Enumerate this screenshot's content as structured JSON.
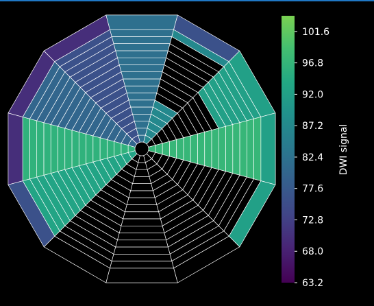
{
  "chart_data": {
    "type": "heatmap",
    "subtype": "polar-segment-map",
    "sectors": 12,
    "rings": 16,
    "min_signal": 63.2,
    "max_signal": 104.0,
    "sector_signal": [
      82,
      87,
      92,
      97,
      0,
      0,
      0,
      0,
      93,
      96,
      80,
      76
    ],
    "lesion_ranges": [
      {
        "sector": 1,
        "ring_from": 6,
        "ring_to": 14
      },
      {
        "sector": 2,
        "ring_from": 0,
        "ring_to": 9
      }
    ],
    "outer_rim_signal": [
      82,
      76,
      92,
      92,
      92,
      0,
      0,
      0,
      76,
      70,
      70,
      70
    ],
    "colorbar": {
      "label": "DWI signal",
      "ticks": [
        "101.6",
        "96.8",
        "92.0",
        "87.2",
        "82.4",
        "77.6",
        "72.8",
        "68.0",
        "63.2"
      ],
      "tick_values": [
        101.6,
        96.8,
        92.0,
        87.2,
        82.4,
        77.6,
        72.8,
        68.0,
        63.2
      ],
      "colormap": "viridis"
    },
    "colors": {
      "background": "#000000",
      "grid": "#ffffff",
      "lesion": "#000000"
    }
  }
}
